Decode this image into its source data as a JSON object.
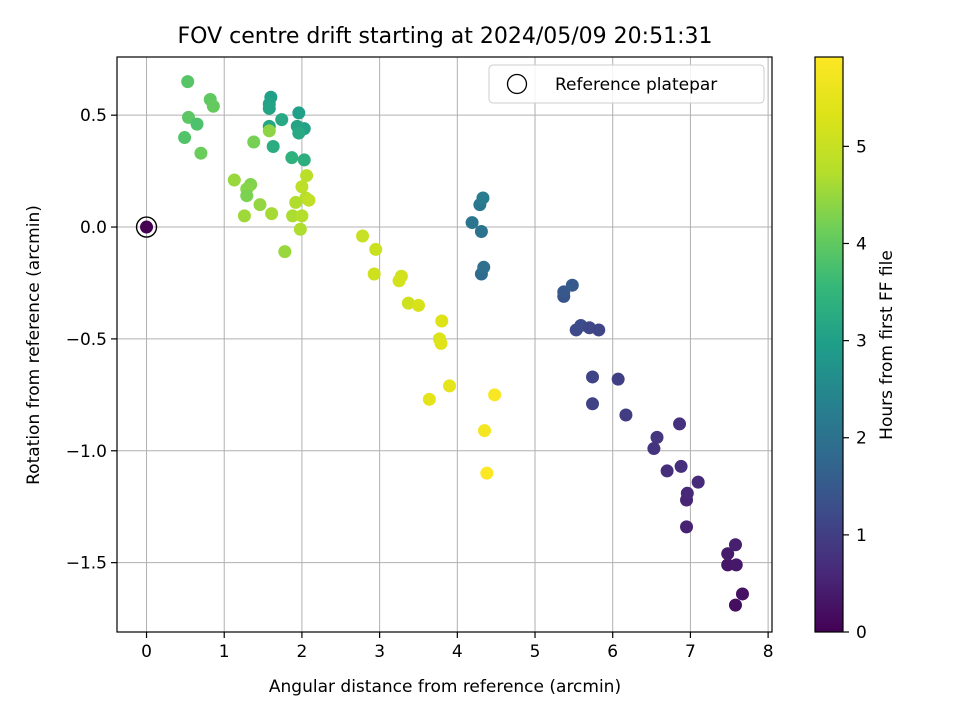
{
  "chart_data": {
    "type": "scatter",
    "title": "FOV centre drift starting at 2024/05/09 20:51:31",
    "xlabel": "Angular distance from reference (arcmin)",
    "ylabel": "Rotation from reference (arcmin)",
    "xlim": [
      -0.38,
      8.05
    ],
    "ylim": [
      -1.81,
      0.76
    ],
    "xticks": [
      0,
      1,
      2,
      3,
      4,
      5,
      6,
      7,
      8
    ],
    "xtick_labels": [
      "0",
      "1",
      "2",
      "3",
      "4",
      "5",
      "6",
      "7",
      "8"
    ],
    "yticks": [
      0.5,
      0.0,
      -0.5,
      -1.0,
      -1.5
    ],
    "ytick_labels": [
      "0.5",
      "0.0",
      "−0.5",
      "−1.0",
      "−1.5"
    ],
    "grid": true,
    "legend": {
      "position": "top-right",
      "entries": [
        "Reference platepar"
      ]
    },
    "reference_point": {
      "x": 0,
      "y": 0
    },
    "colorbar": {
      "label": "Hours from first FF file",
      "min": 0,
      "max": 5.92,
      "ticks": [
        0,
        1,
        2,
        3,
        4,
        5
      ],
      "tick_labels": [
        "0",
        "1",
        "2",
        "3",
        "4",
        "5"
      ],
      "colormap": "viridis"
    },
    "points": [
      {
        "x": 0.0,
        "y": 0.0,
        "c": 0.0
      },
      {
        "x": 7.58,
        "y": -1.69,
        "c": 0.2
      },
      {
        "x": 7.67,
        "y": -1.64,
        "c": 0.25
      },
      {
        "x": 7.48,
        "y": -1.51,
        "c": 0.3
      },
      {
        "x": 7.59,
        "y": -1.51,
        "c": 0.35
      },
      {
        "x": 7.48,
        "y": -1.46,
        "c": 0.4
      },
      {
        "x": 7.58,
        "y": -1.42,
        "c": 0.45
      },
      {
        "x": 6.95,
        "y": -1.34,
        "c": 0.5
      },
      {
        "x": 6.95,
        "y": -1.22,
        "c": 0.55
      },
      {
        "x": 6.96,
        "y": -1.19,
        "c": 0.6
      },
      {
        "x": 7.1,
        "y": -1.14,
        "c": 0.65
      },
      {
        "x": 6.7,
        "y": -1.09,
        "c": 0.7
      },
      {
        "x": 6.88,
        "y": -1.07,
        "c": 0.72
      },
      {
        "x": 6.53,
        "y": -0.99,
        "c": 0.8
      },
      {
        "x": 6.57,
        "y": -0.94,
        "c": 0.85
      },
      {
        "x": 6.86,
        "y": -0.88,
        "c": 0.75
      },
      {
        "x": 6.17,
        "y": -0.84,
        "c": 0.95
      },
      {
        "x": 5.74,
        "y": -0.79,
        "c": 1.05
      },
      {
        "x": 6.07,
        "y": -0.68,
        "c": 1.0
      },
      {
        "x": 5.74,
        "y": -0.67,
        "c": 1.1
      },
      {
        "x": 5.53,
        "y": -0.46,
        "c": 1.2
      },
      {
        "x": 5.59,
        "y": -0.44,
        "c": 1.25
      },
      {
        "x": 5.7,
        "y": -0.45,
        "c": 1.15
      },
      {
        "x": 5.82,
        "y": -0.46,
        "c": 1.12
      },
      {
        "x": 5.37,
        "y": -0.31,
        "c": 1.4
      },
      {
        "x": 5.37,
        "y": -0.29,
        "c": 1.45
      },
      {
        "x": 5.48,
        "y": -0.26,
        "c": 1.5
      },
      {
        "x": 4.31,
        "y": -0.21,
        "c": 1.9
      },
      {
        "x": 4.34,
        "y": -0.18,
        "c": 1.95
      },
      {
        "x": 4.19,
        "y": 0.02,
        "c": 2.1
      },
      {
        "x": 4.31,
        "y": -0.02,
        "c": 2.05
      },
      {
        "x": 4.29,
        "y": 0.1,
        "c": 2.15
      },
      {
        "x": 4.33,
        "y": 0.13,
        "c": 2.2
      },
      {
        "x": 1.6,
        "y": 0.58,
        "c": 3.0
      },
      {
        "x": 1.58,
        "y": 0.55,
        "c": 3.05
      },
      {
        "x": 1.58,
        "y": 0.53,
        "c": 3.1
      },
      {
        "x": 1.58,
        "y": 0.45,
        "c": 3.15
      },
      {
        "x": 1.74,
        "y": 0.48,
        "c": 3.2
      },
      {
        "x": 1.96,
        "y": 0.51,
        "c": 3.0
      },
      {
        "x": 2.03,
        "y": 0.44,
        "c": 3.05
      },
      {
        "x": 1.94,
        "y": 0.45,
        "c": 3.1
      },
      {
        "x": 1.96,
        "y": 0.42,
        "c": 3.2
      },
      {
        "x": 1.63,
        "y": 0.36,
        "c": 3.3
      },
      {
        "x": 1.87,
        "y": 0.31,
        "c": 3.4
      },
      {
        "x": 2.03,
        "y": 0.3,
        "c": 3.35
      },
      {
        "x": 0.53,
        "y": 0.65,
        "c": 3.9
      },
      {
        "x": 0.82,
        "y": 0.57,
        "c": 4.0
      },
      {
        "x": 0.86,
        "y": 0.54,
        "c": 4.05
      },
      {
        "x": 0.54,
        "y": 0.49,
        "c": 3.95
      },
      {
        "x": 0.65,
        "y": 0.46,
        "c": 3.8
      },
      {
        "x": 0.49,
        "y": 0.4,
        "c": 3.85
      },
      {
        "x": 0.7,
        "y": 0.33,
        "c": 4.1
      },
      {
        "x": 1.38,
        "y": 0.38,
        "c": 4.2
      },
      {
        "x": 1.58,
        "y": 0.43,
        "c": 4.4
      },
      {
        "x": 1.13,
        "y": 0.21,
        "c": 4.5
      },
      {
        "x": 1.34,
        "y": 0.19,
        "c": 4.3
      },
      {
        "x": 1.29,
        "y": 0.17,
        "c": 4.35
      },
      {
        "x": 1.29,
        "y": 0.14,
        "c": 4.25
      },
      {
        "x": 1.46,
        "y": 0.1,
        "c": 4.45
      },
      {
        "x": 1.26,
        "y": 0.05,
        "c": 4.55
      },
      {
        "x": 1.61,
        "y": 0.06,
        "c": 4.6
      },
      {
        "x": 1.88,
        "y": 0.05,
        "c": 4.65
      },
      {
        "x": 1.78,
        "y": -0.11,
        "c": 4.5
      },
      {
        "x": 2.06,
        "y": 0.23,
        "c": 4.8
      },
      {
        "x": 2.0,
        "y": 0.18,
        "c": 4.85
      },
      {
        "x": 2.05,
        "y": 0.13,
        "c": 4.75
      },
      {
        "x": 2.09,
        "y": 0.12,
        "c": 4.9
      },
      {
        "x": 1.92,
        "y": 0.11,
        "c": 4.7
      },
      {
        "x": 2.0,
        "y": 0.05,
        "c": 4.72
      },
      {
        "x": 1.98,
        "y": -0.01,
        "c": 4.68
      },
      {
        "x": 2.78,
        "y": -0.04,
        "c": 5.0
      },
      {
        "x": 2.95,
        "y": -0.1,
        "c": 5.05
      },
      {
        "x": 2.93,
        "y": -0.21,
        "c": 5.1
      },
      {
        "x": 3.28,
        "y": -0.22,
        "c": 5.15
      },
      {
        "x": 3.25,
        "y": -0.24,
        "c": 5.2
      },
      {
        "x": 3.37,
        "y": -0.34,
        "c": 5.1
      },
      {
        "x": 3.5,
        "y": -0.35,
        "c": 5.25
      },
      {
        "x": 3.8,
        "y": -0.42,
        "c": 5.35
      },
      {
        "x": 3.77,
        "y": -0.5,
        "c": 5.3
      },
      {
        "x": 3.79,
        "y": -0.52,
        "c": 5.4
      },
      {
        "x": 3.64,
        "y": -0.77,
        "c": 5.45
      },
      {
        "x": 3.9,
        "y": -0.71,
        "c": 5.5
      },
      {
        "x": 4.48,
        "y": -0.75,
        "c": 5.85
      },
      {
        "x": 4.35,
        "y": -0.91,
        "c": 5.75
      },
      {
        "x": 4.38,
        "y": -1.1,
        "c": 5.9
      }
    ]
  }
}
